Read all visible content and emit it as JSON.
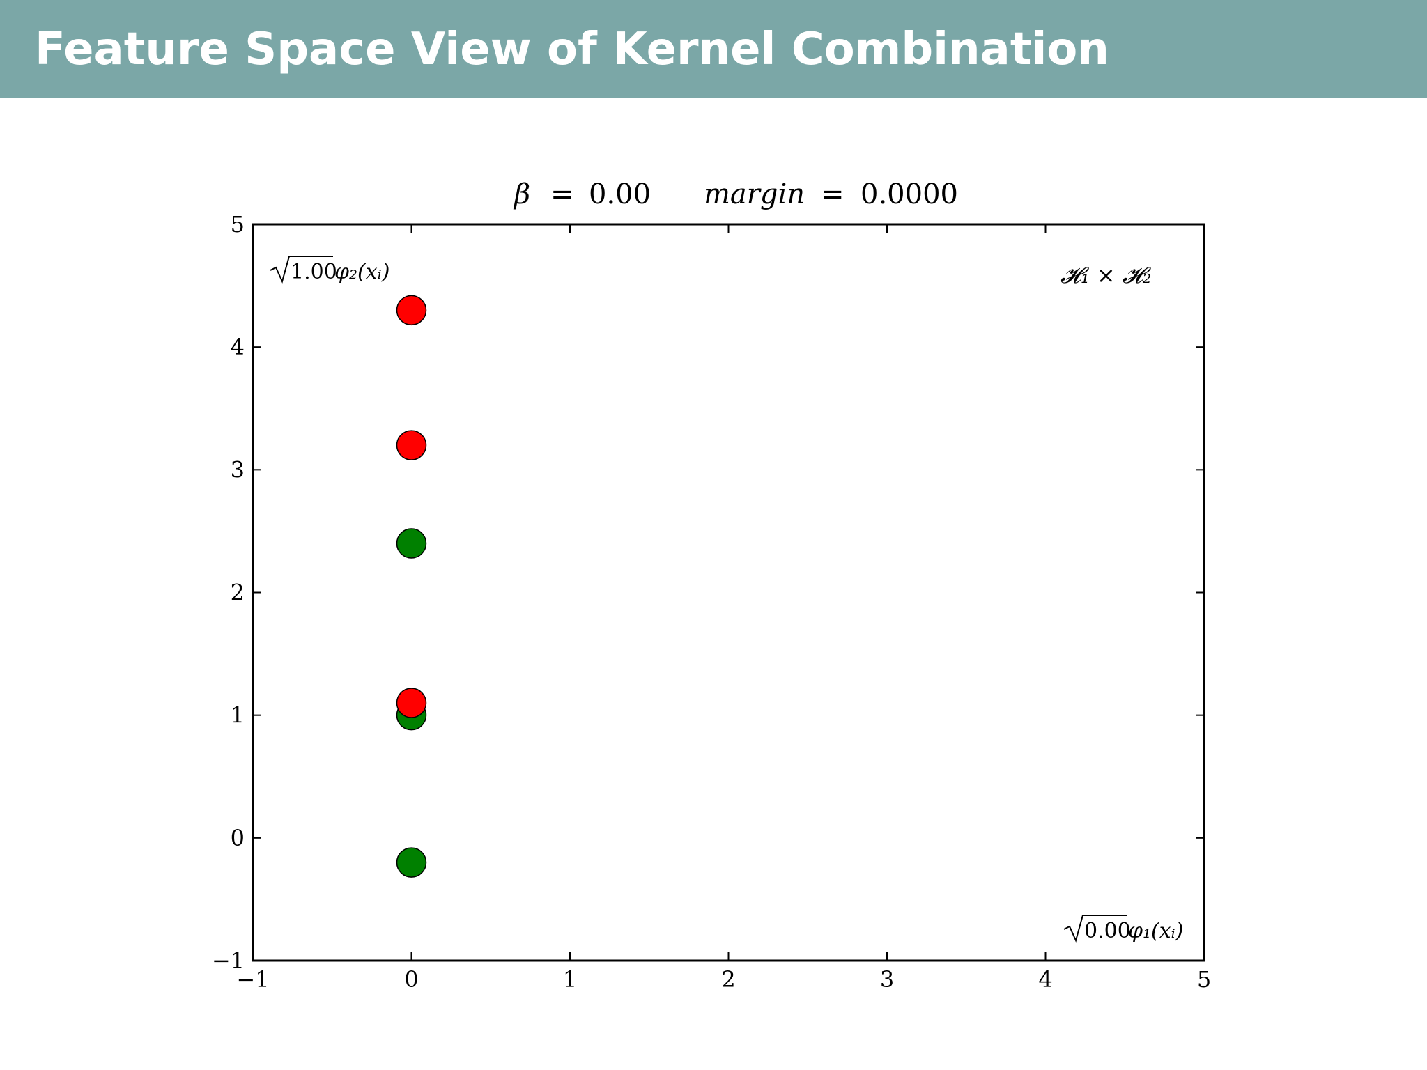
{
  "slide": {
    "title": "Feature Space View of Kernel Combination"
  },
  "chart_data": {
    "type": "scatter",
    "title_parts": {
      "beta_symbol": "β",
      "equals": "=",
      "beta_value": "0.00",
      "margin_label": "margin",
      "margin_value": "0.0000"
    },
    "xlim": [
      -1,
      5
    ],
    "ylim": [
      -1,
      5
    ],
    "xticks": [
      -1,
      0,
      1,
      2,
      3,
      4,
      5
    ],
    "yticks": [
      -1,
      0,
      1,
      2,
      3,
      4,
      5
    ],
    "xtick_labels": [
      "−1",
      "0",
      "1",
      "2",
      "3",
      "4",
      "5"
    ],
    "ytick_labels": [
      "−1",
      "0",
      "1",
      "2",
      "3",
      "4",
      "5"
    ],
    "grid": false,
    "annotations": {
      "y_feature_coef": "1.00",
      "y_feature_func": "φ₂(xᵢ)",
      "x_feature_coef": "0.00",
      "x_feature_func": "φ₁(xᵢ)",
      "space_label": "𝓗₁ × 𝓗₂"
    },
    "series": [
      {
        "color": "#008000",
        "points": [
          {
            "x": 0,
            "y": -0.2
          },
          {
            "x": 0,
            "y": 1.0
          },
          {
            "x": 0,
            "y": 2.4
          }
        ]
      },
      {
        "color": "#ff0000",
        "points": [
          {
            "x": 0,
            "y": 1.1
          },
          {
            "x": 0,
            "y": 3.2
          },
          {
            "x": 0,
            "y": 4.3
          }
        ]
      }
    ]
  }
}
